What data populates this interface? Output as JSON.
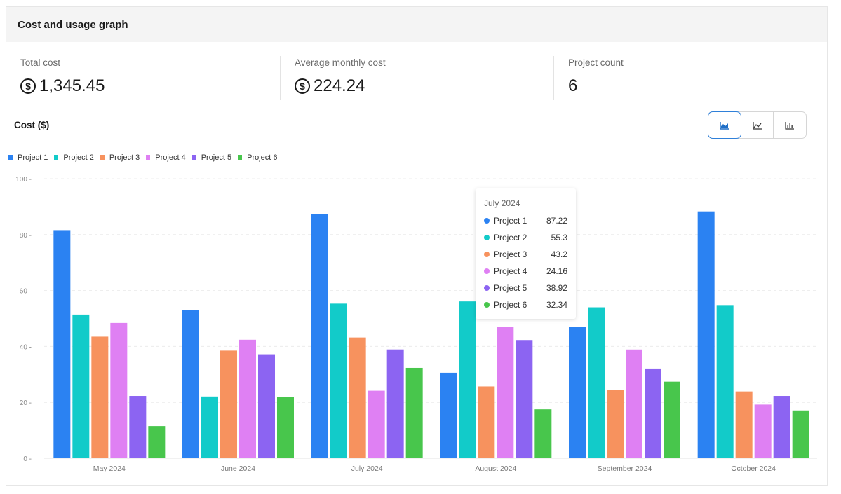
{
  "header": {
    "title": "Cost and usage graph"
  },
  "stats": [
    {
      "label": "Total cost",
      "value": "1,345.45",
      "icon": "dollar-circle-icon"
    },
    {
      "label": "Average monthly cost",
      "value": "224.24",
      "icon": "dollar-circle-icon"
    },
    {
      "label": "Project count",
      "value": "6"
    }
  ],
  "chart_section": {
    "label": "Cost ($)"
  },
  "toggle": [
    {
      "name": "area-chart-icon",
      "active": true
    },
    {
      "name": "line-chart-icon",
      "active": false
    },
    {
      "name": "bar-chart-icon",
      "active": false
    }
  ],
  "chart_data": {
    "type": "bar",
    "categories": [
      "May 2024",
      "June 2024",
      "July 2024",
      "August 2024",
      "September 2024",
      "October 2024"
    ],
    "ylim": [
      0,
      100
    ],
    "yticks": [
      0,
      20,
      40,
      60,
      80,
      100
    ],
    "ytick_labels": [
      "0 -",
      "20 -",
      "40 -",
      "60 -",
      "80 -",
      "100 -"
    ],
    "grid": true,
    "legend_position": "top-left",
    "series": [
      {
        "name": "Project 1",
        "color": "#2b82f2",
        "values": [
          81.6,
          53.0,
          87.22,
          30.6,
          47.0,
          88.3
        ]
      },
      {
        "name": "Project 2",
        "color": "#12cbc9",
        "values": [
          51.4,
          22.1,
          55.3,
          56.1,
          54.0,
          54.8
        ]
      },
      {
        "name": "Project 3",
        "color": "#f7925e",
        "values": [
          43.5,
          38.5,
          43.2,
          25.7,
          24.5,
          23.9
        ]
      },
      {
        "name": "Project 4",
        "color": "#df80f3",
        "values": [
          48.4,
          42.4,
          24.16,
          47.0,
          38.9,
          19.2
        ]
      },
      {
        "name": "Project 5",
        "color": "#8c64f2",
        "values": [
          22.3,
          37.2,
          38.92,
          42.3,
          32.1,
          22.3
        ]
      },
      {
        "name": "Project 6",
        "color": "#48c64c",
        "values": [
          11.5,
          22.0,
          32.34,
          17.5,
          27.4,
          17.1
        ]
      }
    ],
    "tooltip": {
      "title": "July 2024",
      "rows": [
        {
          "name": "Project 1",
          "value": "87.22",
          "color": "#2b82f2"
        },
        {
          "name": "Project 2",
          "value": "55.3",
          "color": "#12cbc9"
        },
        {
          "name": "Project 3",
          "value": "43.2",
          "color": "#f7925e"
        },
        {
          "name": "Project 4",
          "value": "24.16",
          "color": "#df80f3"
        },
        {
          "name": "Project 5",
          "value": "38.92",
          "color": "#8c64f2"
        },
        {
          "name": "Project 6",
          "value": "32.34",
          "color": "#48c64c"
        }
      ]
    }
  }
}
